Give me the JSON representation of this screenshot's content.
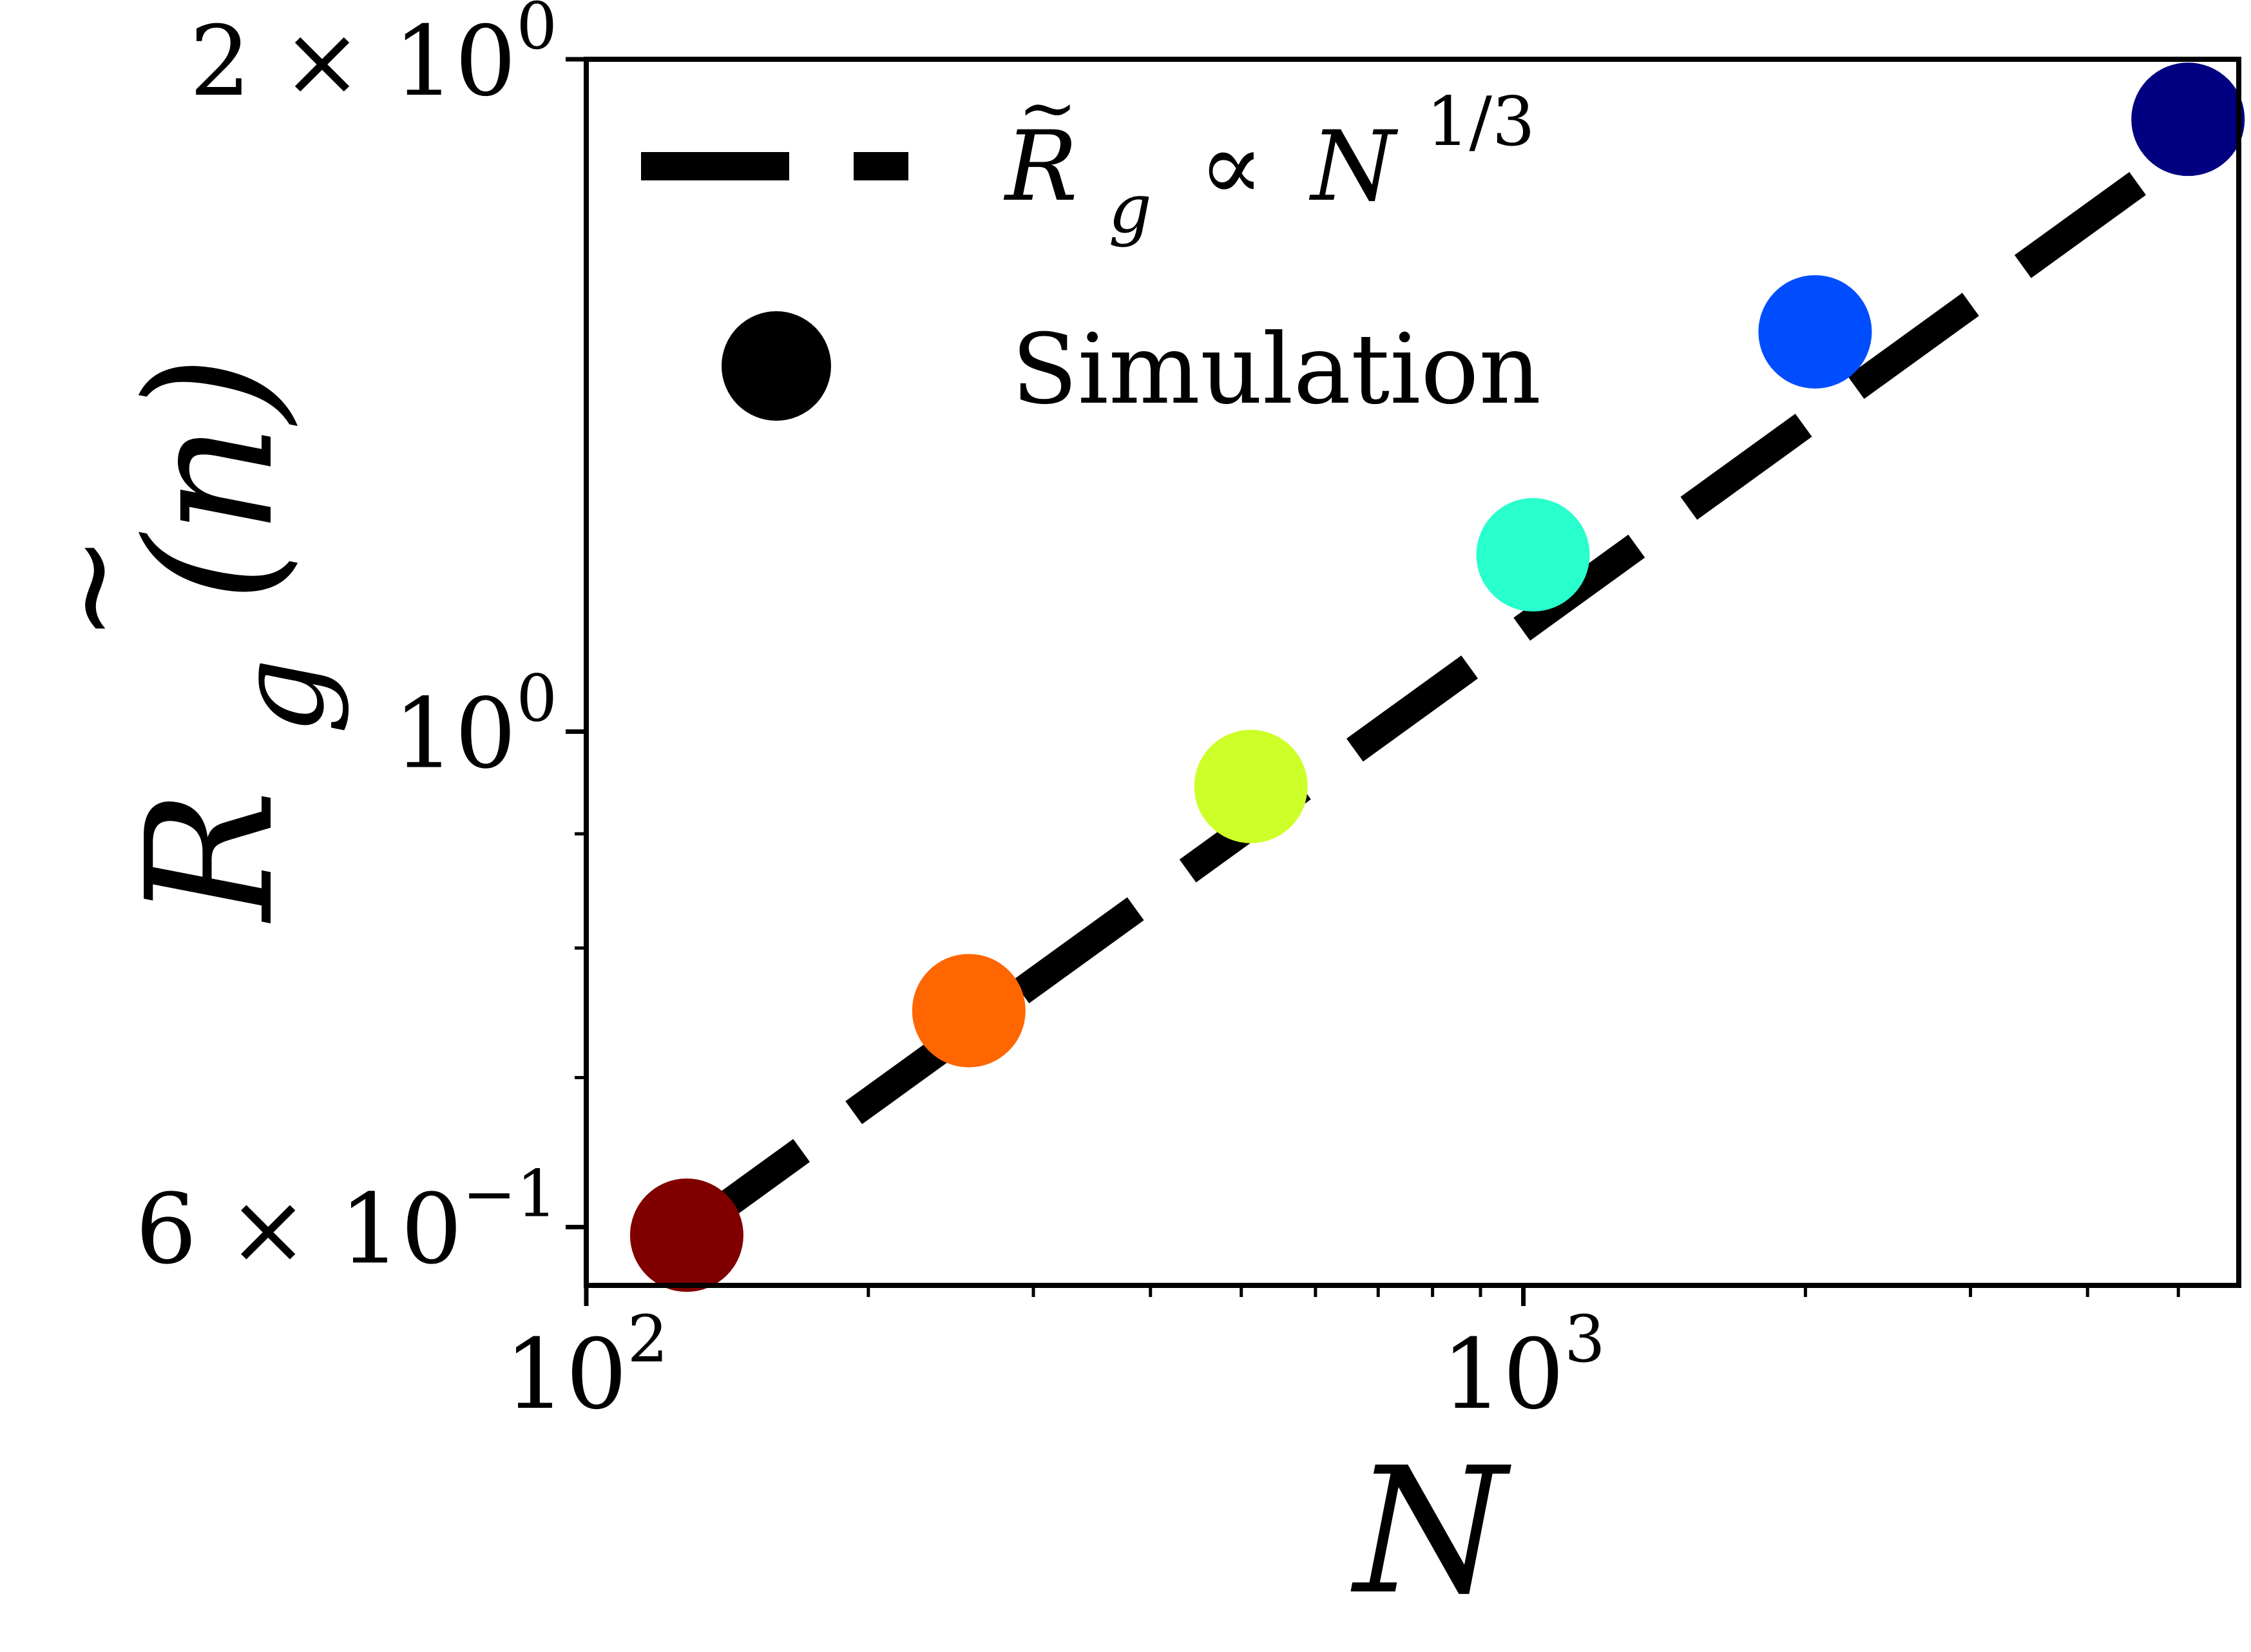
{
  "chart_data": {
    "type": "scatter",
    "x_scale": "log",
    "y_scale": "log",
    "xlabel": "N",
    "ylabel": {
      "base": "R",
      "accent": "~",
      "subscript": "g",
      "argument": "(n)"
    },
    "xlim": [
      100,
      5800
    ],
    "ylim": [
      0.565,
      2.0
    ],
    "x_ticks": [
      {
        "value": 100,
        "mantissa": "",
        "base": "10",
        "exponent": "2"
      },
      {
        "value": 1000,
        "mantissa": "",
        "base": "10",
        "exponent": "3"
      }
    ],
    "y_ticks": [
      {
        "value": 0.6,
        "mantissa": "6 × ",
        "base": "10",
        "exponent": "−1"
      },
      {
        "value": 1.0,
        "mantissa": "",
        "base": "10",
        "exponent": "0"
      },
      {
        "value": 2.0,
        "mantissa": "2 × ",
        "base": "10",
        "exponent": "0"
      }
    ],
    "x_minor_ticks": [
      200,
      300,
      400,
      500,
      600,
      700,
      800,
      900,
      2000,
      3000,
      4000,
      5000
    ],
    "y_minor_ticks": [
      0.7,
      0.8,
      0.9
    ],
    "grid": false,
    "legend_position": "top-left",
    "series": [
      {
        "name": {
          "lhs_base": "R",
          "lhs_accent": "~",
          "lhs_subscript": "g",
          "relation": "∝",
          "rhs_base": "N",
          "rhs_exponent": "1/3"
        },
        "kind": "line",
        "style": "dashed",
        "color": "#000000",
        "x": [
          128,
          5120
        ],
        "y": [
          0.596,
          1.827
        ]
      },
      {
        "name": "Simulation",
        "kind": "scatter",
        "legend_color": "#000000",
        "points": [
          {
            "x": 128,
            "y": 0.595,
            "color": "#800000"
          },
          {
            "x": 256,
            "y": 0.75,
            "color": "#ff6600"
          },
          {
            "x": 512,
            "y": 0.945,
            "color": "#cdff28"
          },
          {
            "x": 1024,
            "y": 1.2,
            "color": "#28ffcd"
          },
          {
            "x": 2048,
            "y": 1.51,
            "color": "#004dff"
          },
          {
            "x": 5120,
            "y": 1.88,
            "color": "#000080"
          }
        ]
      }
    ]
  }
}
